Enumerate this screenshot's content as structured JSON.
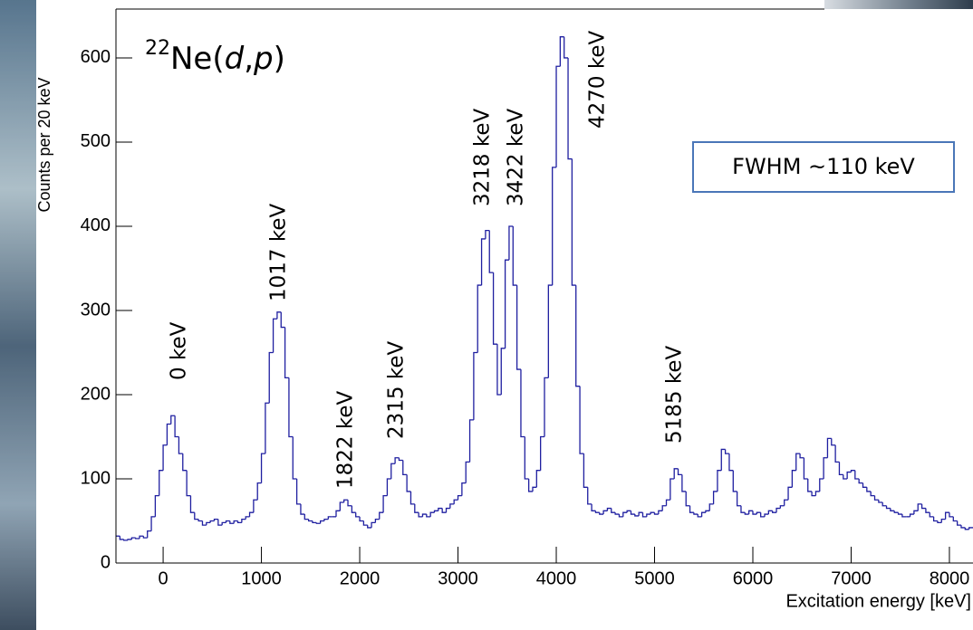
{
  "chart_data": {
    "type": "histogram",
    "title": {
      "superscript": "22",
      "element": "Ne",
      "reaction_parts": [
        "(",
        "d",
        ",",
        "p",
        ")"
      ]
    },
    "x_label": "Excitation energy [keV]",
    "y_label": "Counts per 20 keV",
    "annotations": [
      "0 keV",
      "1017 keV",
      "1822 keV",
      "2315 keV",
      "3218 keV",
      "3422 keV",
      "4270 keV",
      "5185 keV"
    ],
    "note_box": "FWHM ~110 keV",
    "color": "#1f1fa0",
    "xlim": [
      -480,
      8240
    ],
    "ylim": [
      0,
      658
    ],
    "xticks": [
      0,
      1000,
      2000,
      3000,
      4000,
      5000,
      6000,
      7000,
      8000
    ],
    "yticks": [
      0,
      100,
      200,
      300,
      400,
      500,
      600
    ],
    "bins": [
      -480,
      -440,
      -400,
      -360,
      -320,
      -280,
      -240,
      -200,
      -160,
      -120,
      -80,
      -40,
      0,
      40,
      80,
      120,
      160,
      200,
      240,
      280,
      320,
      360,
      400,
      440,
      480,
      520,
      560,
      600,
      640,
      680,
      720,
      760,
      800,
      840,
      880,
      920,
      960,
      1000,
      1040,
      1080,
      1120,
      1160,
      1200,
      1240,
      1280,
      1320,
      1360,
      1400,
      1440,
      1480,
      1520,
      1560,
      1600,
      1640,
      1680,
      1720,
      1760,
      1800,
      1840,
      1880,
      1920,
      1960,
      2000,
      2040,
      2080,
      2120,
      2160,
      2200,
      2240,
      2280,
      2320,
      2360,
      2400,
      2440,
      2480,
      2520,
      2560,
      2600,
      2640,
      2680,
      2720,
      2760,
      2800,
      2840,
      2880,
      2920,
      2960,
      3000,
      3040,
      3080,
      3120,
      3160,
      3200,
      3240,
      3280,
      3320,
      3360,
      3400,
      3440,
      3480,
      3520,
      3560,
      3600,
      3640,
      3680,
      3720,
      3760,
      3800,
      3840,
      3880,
      3920,
      3960,
      4000,
      4040,
      4080,
      4120,
      4160,
      4200,
      4240,
      4280,
      4320,
      4360,
      4400,
      4440,
      4480,
      4520,
      4560,
      4600,
      4640,
      4680,
      4720,
      4760,
      4800,
      4840,
      4880,
      4920,
      4960,
      5000,
      5040,
      5080,
      5120,
      5160,
      5200,
      5240,
      5280,
      5320,
      5360,
      5400,
      5440,
      5480,
      5520,
      5560,
      5600,
      5640,
      5680,
      5720,
      5760,
      5800,
      5840,
      5880,
      5920,
      5960,
      6000,
      6040,
      6080,
      6120,
      6160,
      6200,
      6240,
      6280,
      6320,
      6360,
      6400,
      6440,
      6480,
      6520,
      6560,
      6600,
      6640,
      6680,
      6720,
      6760,
      6800,
      6840,
      6880,
      6920,
      6960,
      7000,
      7040,
      7080,
      7120,
      7160,
      7200,
      7240,
      7280,
      7320,
      7360,
      7400,
      7440,
      7480,
      7520,
      7560,
      7600,
      7640,
      7680,
      7720,
      7760,
      7800,
      7840,
      7880,
      7920,
      7960,
      8000,
      8040,
      8080,
      8120,
      8160,
      8200,
      8240
    ],
    "values": [
      32,
      28,
      27,
      28,
      30,
      29,
      32,
      30,
      38,
      55,
      80,
      110,
      140,
      165,
      175,
      150,
      130,
      110,
      80,
      60,
      52,
      50,
      45,
      48,
      50,
      52,
      45,
      48,
      50,
      47,
      50,
      48,
      52,
      55,
      60,
      75,
      95,
      130,
      190,
      250,
      290,
      298,
      280,
      220,
      150,
      100,
      70,
      58,
      52,
      50,
      48,
      47,
      50,
      52,
      55,
      55,
      62,
      72,
      75,
      68,
      60,
      55,
      50,
      45,
      42,
      48,
      52,
      60,
      80,
      100,
      118,
      125,
      122,
      105,
      85,
      70,
      60,
      55,
      58,
      55,
      60,
      62,
      65,
      60,
      65,
      70,
      75,
      80,
      95,
      120,
      170,
      250,
      330,
      385,
      395,
      345,
      260,
      200,
      255,
      360,
      400,
      330,
      230,
      150,
      100,
      85,
      90,
      110,
      150,
      220,
      330,
      470,
      590,
      625,
      600,
      480,
      330,
      210,
      130,
      90,
      70,
      62,
      60,
      58,
      62,
      65,
      60,
      58,
      55,
      60,
      62,
      58,
      56,
      60,
      55,
      58,
      60,
      58,
      62,
      68,
      75,
      100,
      112,
      105,
      85,
      68,
      60,
      58,
      55,
      60,
      62,
      70,
      85,
      110,
      135,
      130,
      110,
      85,
      68,
      60,
      58,
      62,
      58,
      60,
      55,
      58,
      62,
      60,
      65,
      68,
      75,
      90,
      110,
      130,
      125,
      100,
      85,
      80,
      85,
      100,
      125,
      148,
      140,
      120,
      105,
      100,
      108,
      110,
      100,
      95,
      90,
      85,
      80,
      75,
      72,
      68,
      65,
      62,
      60,
      58,
      55,
      55,
      58,
      62,
      70,
      65,
      60,
      55,
      50,
      48,
      52,
      60,
      55,
      50,
      45,
      42,
      40,
      42
    ]
  }
}
